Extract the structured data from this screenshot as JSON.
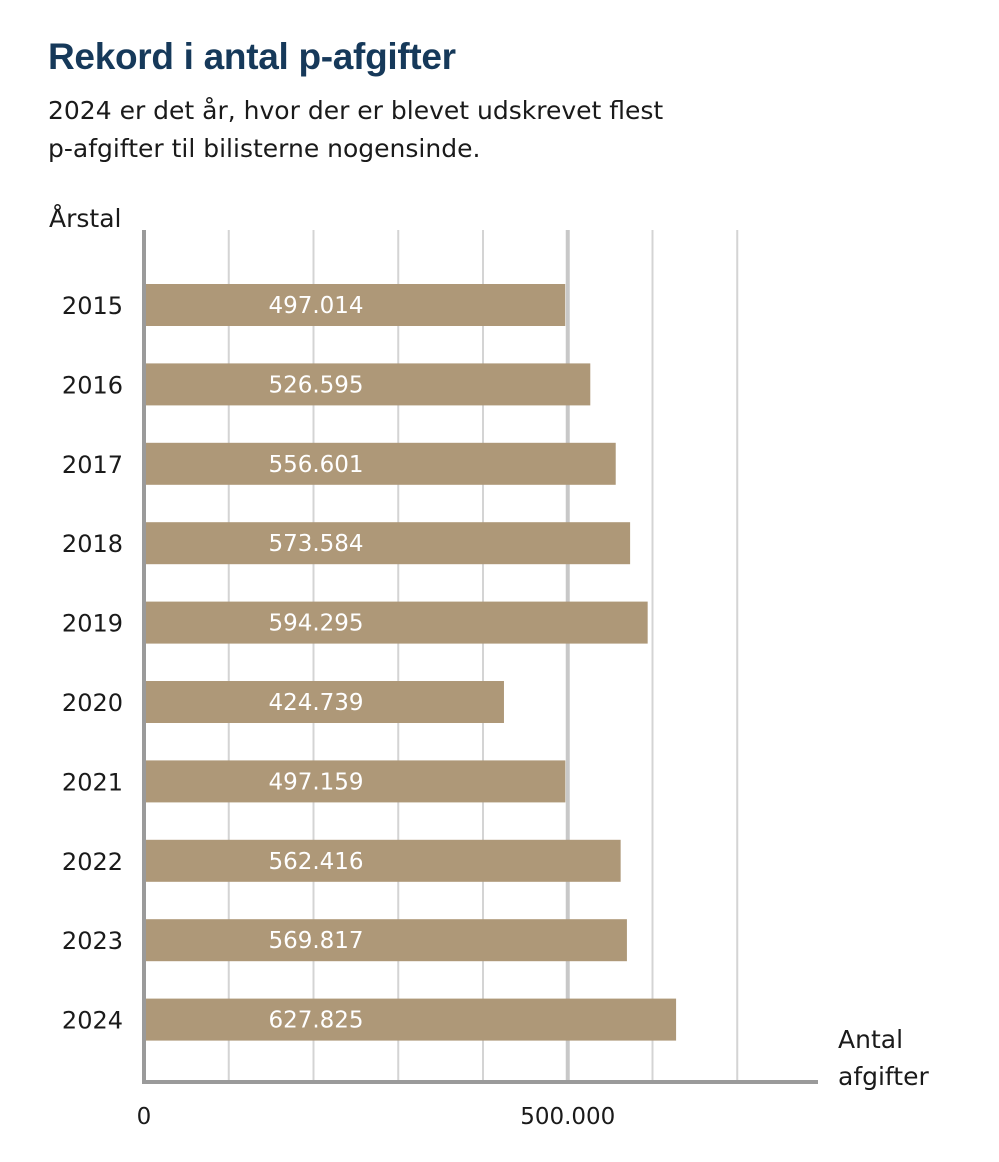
{
  "chart_data": {
    "type": "bar",
    "orientation": "horizontal",
    "title": "Rekord i antal p-afgifter",
    "subtitle": "2024 er det år, hvor der er blevet udskrevet flest p-afgifter til bilisterne nogensinde.",
    "ylabel": "Årstal",
    "xlabel": "Antal afgifter",
    "categories": [
      "2015",
      "2016",
      "2017",
      "2018",
      "2019",
      "2020",
      "2021",
      "2022",
      "2023",
      "2024"
    ],
    "values": [
      497014,
      526595,
      556601,
      573584,
      594295,
      424739,
      497159,
      562416,
      569817,
      627825
    ],
    "value_labels": [
      "497.014",
      "526.595",
      "556.601",
      "573.584",
      "594.295",
      "424.739",
      "497.159",
      "562.416",
      "569.817",
      "627.825"
    ],
    "x_tick_labels": [
      {
        "value": 0,
        "label": "0"
      },
      {
        "value": 500000,
        "label": "500.000"
      }
    ],
    "xlim": [
      0,
      800000
    ],
    "gridlines": [
      100000,
      200000,
      300000,
      400000,
      500000,
      600000,
      700000
    ],
    "major_gridline": 500000,
    "grid": true,
    "legend": "none",
    "colors": {
      "bar": "#ae9878",
      "grid": "#d4d4d4",
      "major_grid": "#c8c8c8",
      "axis": "#9a9a9a",
      "title": "#16395a",
      "bar_label": "#ffffff"
    }
  }
}
